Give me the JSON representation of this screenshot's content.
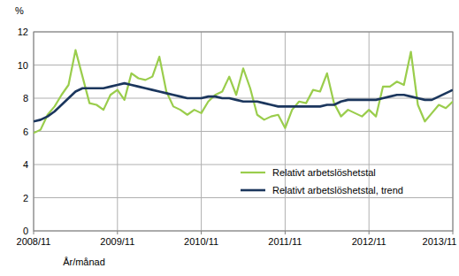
{
  "chart_data": {
    "type": "line",
    "y_label": "%",
    "x_label": "År/månad",
    "categories": [
      "2008/11",
      null,
      null,
      null,
      null,
      null,
      null,
      null,
      null,
      null,
      null,
      null,
      "2009/11",
      null,
      null,
      null,
      null,
      null,
      null,
      null,
      null,
      null,
      null,
      null,
      "2010/11",
      null,
      null,
      null,
      null,
      null,
      null,
      null,
      null,
      null,
      null,
      null,
      "2011/11",
      null,
      null,
      null,
      null,
      null,
      null,
      null,
      null,
      null,
      null,
      null,
      "2012/11",
      null,
      null,
      null,
      null,
      null,
      null,
      null,
      null,
      null,
      null,
      null,
      "2013/11"
    ],
    "series": [
      {
        "name": "Relativt arbetslöshetstal",
        "color": "#9acd4c",
        "values": [
          5.9,
          6.1,
          7.0,
          7.5,
          8.2,
          8.8,
          10.9,
          9.3,
          7.7,
          7.6,
          7.3,
          8.2,
          8.5,
          7.9,
          9.5,
          9.2,
          9.1,
          9.3,
          10.5,
          8.4,
          7.5,
          7.3,
          7.0,
          7.3,
          7.1,
          7.8,
          8.2,
          8.4,
          9.3,
          8.2,
          9.8,
          8.6,
          7.0,
          6.7,
          6.9,
          7.0,
          6.2,
          7.3,
          7.8,
          7.7,
          8.5,
          8.4,
          9.5,
          7.7,
          6.9,
          7.3,
          7.1,
          6.9,
          7.3,
          6.9,
          8.7,
          8.7,
          9.0,
          8.8,
          10.8,
          7.6,
          6.6,
          7.1,
          7.6,
          7.4,
          7.8
        ]
      },
      {
        "name": "Relativt arbetslöshetstal, trend",
        "color": "#1b365d",
        "values": [
          6.6,
          6.7,
          6.9,
          7.2,
          7.6,
          8.0,
          8.4,
          8.6,
          8.6,
          8.6,
          8.6,
          8.7,
          8.8,
          8.9,
          8.8,
          8.7,
          8.6,
          8.5,
          8.4,
          8.3,
          8.2,
          8.1,
          8.0,
          8.0,
          8.0,
          8.1,
          8.1,
          8.0,
          8.0,
          7.9,
          7.8,
          7.8,
          7.8,
          7.7,
          7.6,
          7.5,
          7.5,
          7.5,
          7.5,
          7.5,
          7.5,
          7.5,
          7.6,
          7.6,
          7.8,
          7.9,
          7.9,
          7.9,
          7.9,
          7.9,
          8.0,
          8.1,
          8.2,
          8.2,
          8.1,
          8.0,
          7.9,
          7.9,
          8.1,
          8.3,
          8.5
        ]
      }
    ],
    "ylim": [
      0,
      12
    ],
    "yticks": [
      0,
      2,
      4,
      6,
      8,
      10,
      12
    ],
    "grid": true,
    "legend": "lower right"
  }
}
